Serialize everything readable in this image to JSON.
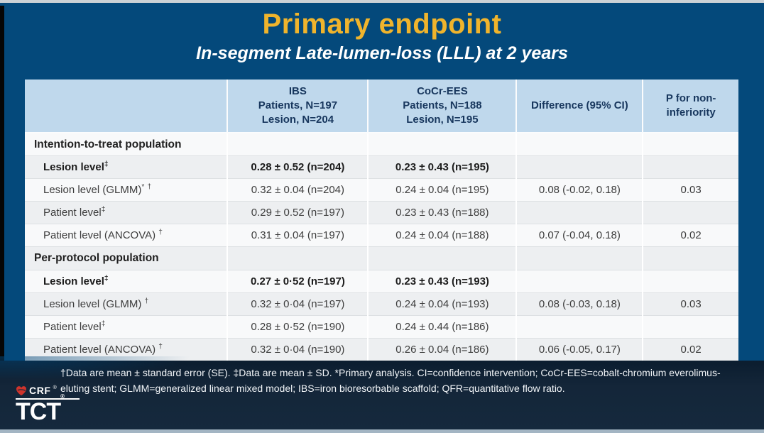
{
  "slide": {
    "title": "Primary endpoint",
    "subtitle": "In-segment Late-lumen-loss (LLL) at 2 years"
  },
  "table": {
    "columns": [
      {
        "id": "row_label",
        "lines": [
          ""
        ]
      },
      {
        "id": "ibs",
        "lines": [
          "IBS",
          "Patients, N=197",
          "Lesion, N=204"
        ]
      },
      {
        "id": "cocr_ees",
        "lines": [
          "CoCr-EES",
          "Patients, N=188",
          "Lesion, N=195"
        ]
      },
      {
        "id": "difference",
        "lines": [
          "Difference (95% CI)"
        ]
      },
      {
        "id": "p_noninferiority",
        "lines": [
          "P for non-",
          "inferiority"
        ]
      }
    ],
    "rows": [
      {
        "type": "section",
        "label": "Intention-to-treat population",
        "ibs": "",
        "cocr": "",
        "diff": "",
        "p": ""
      },
      {
        "type": "emphasis",
        "label": "Lesion level‡",
        "ibs": "0.28 ± 0.52 (n=204)",
        "cocr": "0.23 ± 0.43 (n=195)",
        "diff": "",
        "p": ""
      },
      {
        "type": "data",
        "label": "Lesion level (GLMM)* †",
        "ibs": "0.32 ± 0.04 (n=204)",
        "cocr": "0.24 ± 0.04 (n=195)",
        "diff": "0.08 (-0.02, 0.18)",
        "p": "0.03"
      },
      {
        "type": "data",
        "label": "Patient level‡",
        "ibs": "0.29 ± 0.52 (n=197)",
        "cocr": "0.23 ± 0.43 (n=188)",
        "diff": "",
        "p": ""
      },
      {
        "type": "data",
        "label": "Patient level (ANCOVA) †",
        "ibs": "0.31 ± 0.04 (n=197)",
        "cocr": "0.24 ± 0.04 (n=188)",
        "diff": "0.07 (-0.04, 0.18)",
        "p": "0.02"
      },
      {
        "type": "section",
        "label": "Per-protocol population",
        "ibs": "",
        "cocr": "",
        "diff": "",
        "p": ""
      },
      {
        "type": "emphasis",
        "label": "Lesion level‡",
        "ibs": "0.27 ± 0·52 (n=197)",
        "cocr": "0.23 ± 0.43 (n=193)",
        "diff": "",
        "p": ""
      },
      {
        "type": "data",
        "label": "Lesion level (GLMM) †",
        "ibs": "0.32 ± 0·04 (n=197)",
        "cocr": "0.24 ± 0.04 (n=193)",
        "diff": "0.08 (-0.03, 0.18)",
        "p": "0.03"
      },
      {
        "type": "data",
        "label": "Patient level‡",
        "ibs": "0.28 ± 0·52 (n=190)",
        "cocr": "0.24 ± 0.44 (n=186)",
        "diff": "",
        "p": ""
      },
      {
        "type": "data",
        "label": "Patient level (ANCOVA) †",
        "ibs": "0.32 ± 0·04 (n=190)",
        "cocr": "0.26 ± 0.04 (n=186)",
        "diff": "0.06 (-0.05, 0.17)",
        "p": "0.02"
      }
    ]
  },
  "footnote": "†Data are mean ± standard error (SE). ‡Data are mean ± SD. *Primary analysis. CI=confidence intervention; CoCr-EES=cobalt-chromium everolimus-eluting stent; GLMM=generalized linear mixed model; IBS=iron bioresorbable scaffold; QFR=quantitative flow ratio.",
  "footer": {
    "crf": "CRF",
    "tct": "TCT",
    "reg": "®"
  },
  "colors": {
    "background": "#04497b",
    "footer_band": "#15293d",
    "title": "#f0b42c",
    "header_bg": "#bfd8ec",
    "header_text": "#17365d",
    "heart": "#d0342c"
  }
}
